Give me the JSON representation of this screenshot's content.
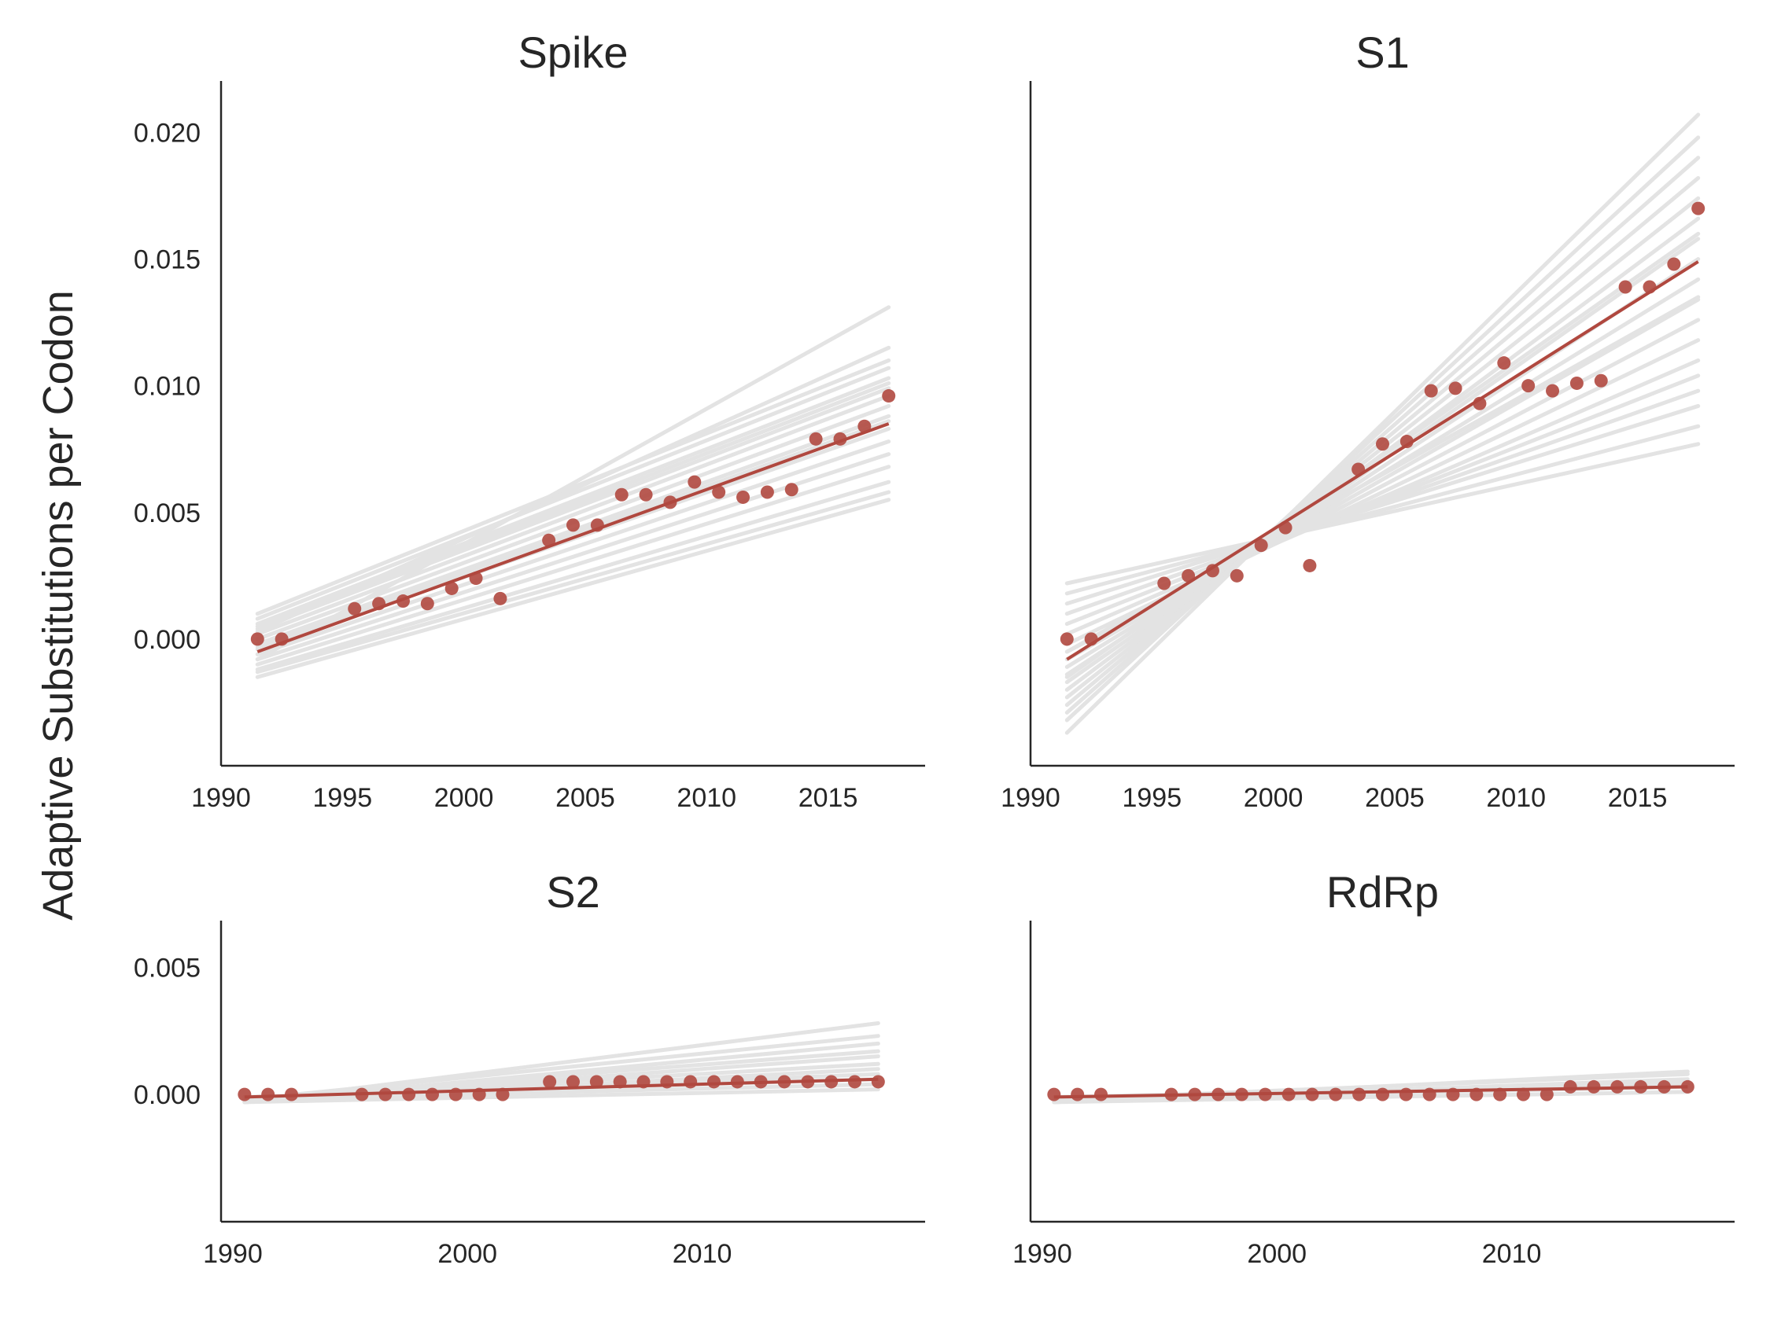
{
  "figure": {
    "ylabel": "Adaptive Substitutions per Codon",
    "colors": {
      "points": "#b0483f",
      "fit": "#b0483f",
      "bootstrap": "#e3e3e3",
      "axis": "#262626"
    }
  },
  "chart_data": [
    {
      "type": "scatter",
      "title": "Spike",
      "xlabel": "",
      "ylabel": "Adaptive Substitutions per Codon",
      "xlim": [
        1990,
        2019
      ],
      "ylim": [
        -0.005,
        0.022
      ],
      "xticks": [
        1990,
        1995,
        2000,
        2005,
        2010,
        2015
      ],
      "xtick_labels": [
        "1990",
        "1995",
        "2000",
        "2005",
        "2010",
        "2015"
      ],
      "yticks": [
        0.0,
        0.005,
        0.01,
        0.015,
        0.02
      ],
      "ytick_labels": [
        "0.000",
        "0.005",
        "0.010",
        "0.015",
        "0.020"
      ],
      "show_yticks": true,
      "points": {
        "x": [
          1991.5,
          1992.5,
          1995.5,
          1996.5,
          1997.5,
          1998.5,
          1999.5,
          2000.5,
          2001.5,
          2003.5,
          2004.5,
          2005.5,
          2006.5,
          2007.5,
          2008.5,
          2009.5,
          2010.5,
          2011.5,
          2012.5,
          2013.5,
          2014.5,
          2015.5,
          2016.5,
          2017.5
        ],
        "y": [
          0.0,
          0.0,
          0.0012,
          0.0014,
          0.0015,
          0.0014,
          0.002,
          0.0024,
          0.0016,
          0.0039,
          0.0045,
          0.0045,
          0.0057,
          0.0057,
          0.0054,
          0.0062,
          0.0058,
          0.0056,
          0.0058,
          0.0059,
          0.0079,
          0.0079,
          0.0084,
          0.0096
        ]
      },
      "fit": {
        "x": [
          1991.5,
          2017.5
        ],
        "y": [
          -0.0005,
          0.0085
        ]
      },
      "bootstrap_fits": [
        [
          -0.0015,
          0.0055
        ],
        [
          -0.0012,
          0.0062
        ],
        [
          -0.001,
          0.0068
        ],
        [
          -0.0008,
          0.0073
        ],
        [
          -0.0006,
          0.0078
        ],
        [
          -0.0004,
          0.0083
        ],
        [
          -0.0002,
          0.0088
        ],
        [
          0.0,
          0.0092
        ],
        [
          0.0002,
          0.0096
        ],
        [
          0.0004,
          0.0099
        ],
        [
          0.0006,
          0.0103
        ],
        [
          0.0008,
          0.0107
        ],
        [
          0.001,
          0.011
        ],
        [
          0.0003,
          0.0115
        ],
        [
          -0.0008,
          0.0131
        ],
        [
          -0.0013,
          0.0058
        ],
        [
          -0.0003,
          0.0086
        ],
        [
          0.0005,
          0.0101
        ]
      ]
    },
    {
      "type": "scatter",
      "title": "S1",
      "xlabel": "",
      "ylabel": "",
      "xlim": [
        1990,
        2019
      ],
      "ylim": [
        -0.005,
        0.022
      ],
      "xticks": [
        1990,
        1995,
        2000,
        2005,
        2010,
        2015
      ],
      "xtick_labels": [
        "1990",
        "1995",
        "2000",
        "2005",
        "2010",
        "2015"
      ],
      "yticks": [
        0.0,
        0.005,
        0.01,
        0.015,
        0.02
      ],
      "ytick_labels": [],
      "show_yticks": false,
      "points": {
        "x": [
          1991.5,
          1992.5,
          1995.5,
          1996.5,
          1997.5,
          1998.5,
          1999.5,
          2000.5,
          2001.5,
          2003.5,
          2004.5,
          2005.5,
          2006.5,
          2007.5,
          2008.5,
          2009.5,
          2010.5,
          2011.5,
          2012.5,
          2013.5,
          2014.5,
          2015.5,
          2016.5,
          2017.5
        ],
        "y": [
          0.0,
          0.0,
          0.0022,
          0.0025,
          0.0027,
          0.0025,
          0.0037,
          0.0044,
          0.0029,
          0.0067,
          0.0077,
          0.0078,
          0.0098,
          0.0099,
          0.0093,
          0.0109,
          0.01,
          0.0098,
          0.0101,
          0.0102,
          0.0139,
          0.0139,
          0.0148,
          0.017
        ]
      },
      "fit": {
        "x": [
          1991.5,
          2017.5
        ],
        "y": [
          -0.0008,
          0.0149
        ]
      },
      "bootstrap_fits": [
        [
          0.0022,
          0.0077
        ],
        [
          0.0018,
          0.0084
        ],
        [
          0.0014,
          0.0092
        ],
        [
          0.001,
          0.0098
        ],
        [
          0.0006,
          0.0104
        ],
        [
          0.0002,
          0.011
        ],
        [
          -0.0002,
          0.0118
        ],
        [
          -0.0005,
          0.0126
        ],
        [
          -0.0008,
          0.0134
        ],
        [
          -0.0011,
          0.0142
        ],
        [
          -0.0014,
          0.015
        ],
        [
          -0.0017,
          0.0158
        ],
        [
          -0.002,
          0.0166
        ],
        [
          -0.0023,
          0.0174
        ],
        [
          -0.0026,
          0.0182
        ],
        [
          -0.0029,
          0.019
        ],
        [
          -0.0032,
          0.0198
        ],
        [
          -0.0037,
          0.0207
        ],
        [
          -0.0005,
          0.0135
        ],
        [
          -0.0015,
          0.016
        ]
      ]
    },
    {
      "type": "scatter",
      "title": "S2",
      "xlabel": "",
      "ylabel": "",
      "xlim": [
        1989.5,
        2019.5
      ],
      "ylim": [
        -0.005,
        0.0068
      ],
      "xticks": [
        1990,
        2000,
        2010
      ],
      "xtick_labels": [
        "1990",
        "2000",
        "2010"
      ],
      "yticks": [
        0.0,
        0.005
      ],
      "ytick_labels": [
        "0.000",
        "0.005"
      ],
      "show_yticks": true,
      "points": {
        "x": [
          1990.5,
          1991.5,
          1992.5,
          1995.5,
          1996.5,
          1997.5,
          1998.5,
          1999.5,
          2000.5,
          2001.5,
          2003.5,
          2004.5,
          2005.5,
          2006.5,
          2007.5,
          2008.5,
          2009.5,
          2010.5,
          2011.5,
          2012.5,
          2013.5,
          2014.5,
          2015.5,
          2016.5,
          2017.5
        ],
        "y": [
          0.0,
          0.0,
          0.0,
          0.0,
          0.0,
          0.0,
          0.0,
          0.0,
          0.0,
          0.0,
          0.0005,
          0.0005,
          0.0005,
          0.0005,
          0.0005,
          0.0005,
          0.0005,
          0.0005,
          0.0005,
          0.0005,
          0.0005,
          0.0005,
          0.0005,
          0.0005,
          0.0005
        ]
      },
      "fit": {
        "x": [
          1990.5,
          2017.5
        ],
        "y": [
          -0.0001,
          0.0006
        ]
      },
      "bootstrap_fits": [
        [
          -0.0003,
          0.0002
        ],
        [
          -0.0002,
          0.0004
        ],
        [
          -0.0001,
          0.0006
        ],
        [
          -0.0002,
          0.0008
        ],
        [
          -0.0003,
          0.001
        ],
        [
          -0.0002,
          0.0012
        ],
        [
          -0.0003,
          0.0015
        ],
        [
          -0.0002,
          0.0017
        ],
        [
          -0.0003,
          0.002
        ],
        [
          -0.0002,
          0.0023
        ],
        [
          -0.0003,
          0.0028
        ]
      ]
    },
    {
      "type": "scatter",
      "title": "RdRp",
      "xlabel": "",
      "ylabel": "",
      "xlim": [
        1989.5,
        2019.5
      ],
      "ylim": [
        -0.005,
        0.0068
      ],
      "xticks": [
        1990,
        2000,
        2010
      ],
      "xtick_labels": [
        "1990",
        "2000",
        "2010"
      ],
      "yticks": [
        0.0,
        0.005
      ],
      "ytick_labels": [],
      "show_yticks": false,
      "points": {
        "x": [
          1990.5,
          1991.5,
          1992.5,
          1995.5,
          1996.5,
          1997.5,
          1998.5,
          1999.5,
          2000.5,
          2001.5,
          2002.5,
          2003.5,
          2004.5,
          2005.5,
          2006.5,
          2007.5,
          2008.5,
          2009.5,
          2010.5,
          2011.5,
          2012.5,
          2013.5,
          2014.5,
          2015.5,
          2016.5,
          2017.5
        ],
        "y": [
          0.0,
          0.0,
          0.0,
          0.0,
          0.0,
          0.0,
          0.0,
          0.0,
          0.0,
          0.0,
          0.0,
          0.0,
          0.0,
          0.0,
          0.0,
          0.0,
          0.0,
          0.0,
          0.0,
          0.0,
          0.0003,
          0.0003,
          0.0003,
          0.0003,
          0.0003,
          0.0003
        ]
      },
      "fit": {
        "x": [
          1990.5,
          2017.5
        ],
        "y": [
          -0.0001,
          0.0003
        ]
      },
      "bootstrap_fits": [
        [
          -0.0003,
          0.0001
        ],
        [
          -0.0002,
          0.0003
        ],
        [
          -0.0001,
          0.0004
        ],
        [
          -0.0002,
          0.0005
        ],
        [
          -0.0003,
          0.0006
        ],
        [
          -0.0002,
          0.0008
        ],
        [
          -0.0003,
          0.0009
        ]
      ]
    }
  ]
}
